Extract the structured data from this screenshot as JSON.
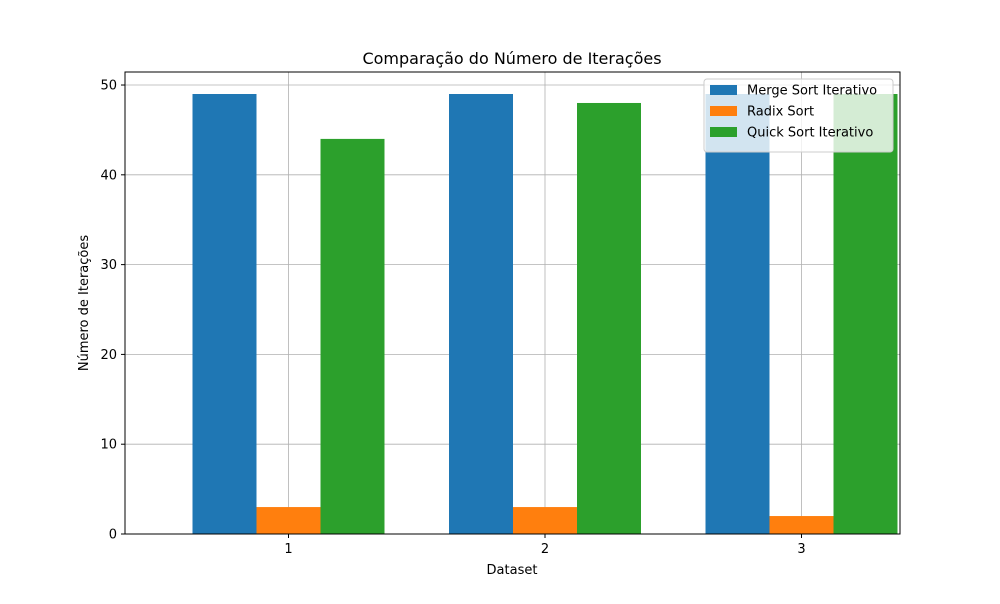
{
  "chart_data": {
    "type": "bar",
    "title": "Comparação do Número de Iterações",
    "xlabel": "Dataset",
    "ylabel": "Número de Iterações",
    "categories": [
      "1",
      "2",
      "3"
    ],
    "series": [
      {
        "name": "Merge Sort Iterativo",
        "color": "#1f77b4",
        "values": [
          49,
          49,
          49
        ]
      },
      {
        "name": "Radix Sort",
        "color": "#ff7f0e",
        "values": [
          3,
          3,
          2
        ]
      },
      {
        "name": "Quick Sort Iterativo",
        "color": "#2ca02c",
        "values": [
          44,
          48,
          49
        ]
      }
    ],
    "ylim": [
      0,
      51.45
    ],
    "yticks": [
      0,
      10,
      20,
      30,
      40,
      50
    ],
    "grid": true,
    "legend_position": "top-right"
  }
}
